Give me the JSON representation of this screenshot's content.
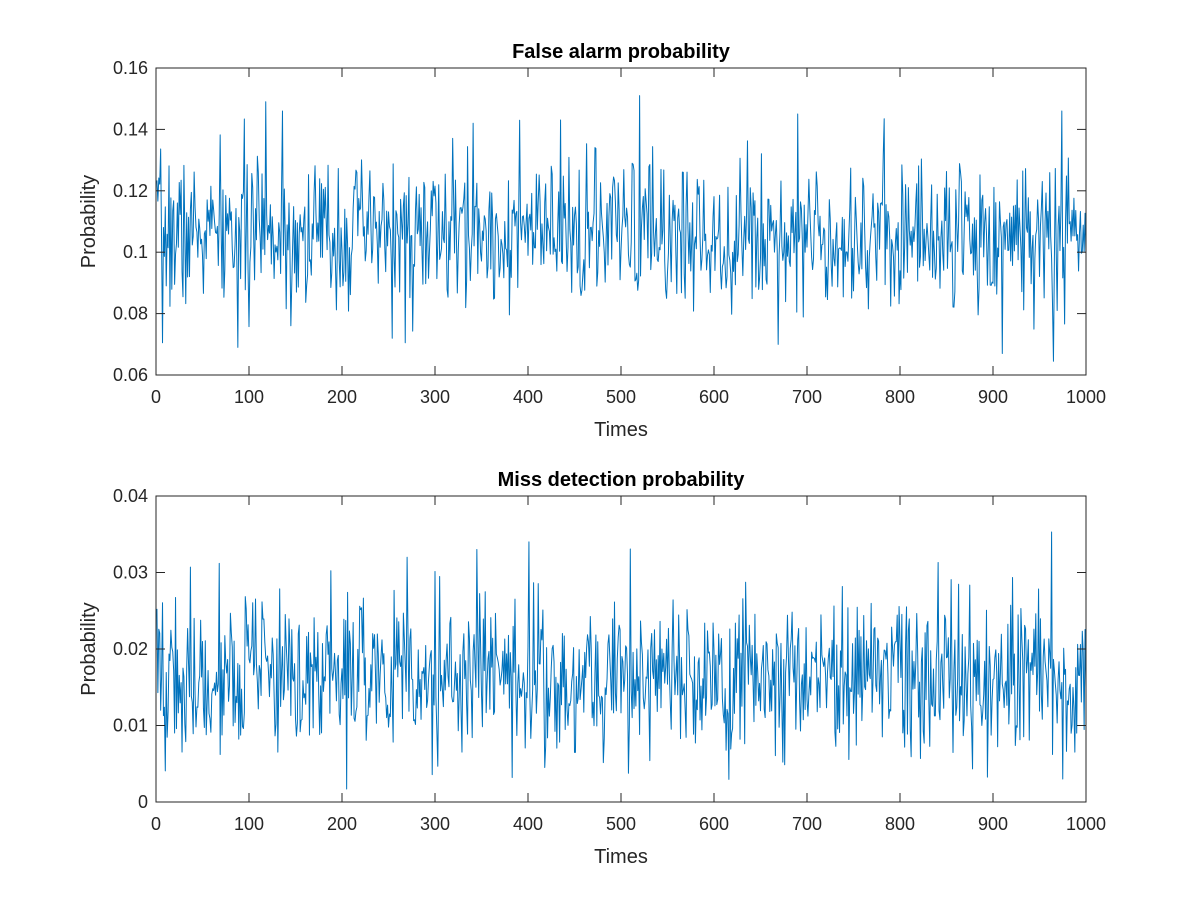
{
  "chart_data": [
    {
      "type": "line",
      "title": "False alarm probability",
      "xlabel": "Times",
      "ylabel": "Probability",
      "xlim": [
        0,
        1000
      ],
      "ylim": [
        0.06,
        0.16
      ],
      "xticks": [
        0,
        100,
        200,
        300,
        400,
        500,
        600,
        700,
        800,
        900,
        1000
      ],
      "yticks": [
        0.06,
        0.08,
        0.1,
        0.12,
        0.14,
        0.16
      ],
      "ytick_labels": [
        "0.06",
        "0.08",
        "0.1",
        "0.12",
        "0.14",
        "0.16"
      ],
      "grid": false,
      "series": [
        {
          "color": "#0072BD",
          "x_start": 1,
          "x_step": 1,
          "count": 1000,
          "mean": 0.106,
          "spread": 0.012,
          "seed": 7,
          "extremes": [
            [
              7,
              0.0705
            ],
            [
              118,
              0.149
            ],
            [
              136,
              0.146
            ],
            [
              268,
              0.0705
            ],
            [
              341,
              0.142
            ],
            [
              520,
              0.151
            ],
            [
              690,
              0.145
            ],
            [
              910,
              0.067
            ],
            [
              965,
              0.0645
            ],
            [
              974,
              0.146
            ],
            [
              88,
              0.069
            ]
          ]
        }
      ]
    },
    {
      "type": "line",
      "title": "Miss detection probability",
      "xlabel": "Times",
      "ylabel": "Probability",
      "xlim": [
        0,
        1000
      ],
      "ylim": [
        0,
        0.04
      ],
      "xticks": [
        0,
        100,
        200,
        300,
        400,
        500,
        600,
        700,
        800,
        900,
        1000
      ],
      "yticks": [
        0,
        0.01,
        0.02,
        0.03,
        0.04
      ],
      "ytick_labels": [
        "0",
        "0.01",
        "0.02",
        "0.03",
        "0.04"
      ],
      "grid": false,
      "series": [
        {
          "color": "#0072BD",
          "x_start": 1,
          "x_step": 1,
          "count": 1000,
          "mean": 0.0165,
          "spread": 0.0052,
          "seed": 19,
          "extremes": [
            [
              205,
              0.0017
            ],
            [
              270,
              0.032
            ],
            [
              401,
              0.034
            ],
            [
              345,
              0.033
            ],
            [
              383,
              0.0032
            ],
            [
              963,
              0.0353
            ],
            [
              975,
              0.003
            ],
            [
              68,
              0.0312
            ]
          ]
        }
      ]
    }
  ]
}
